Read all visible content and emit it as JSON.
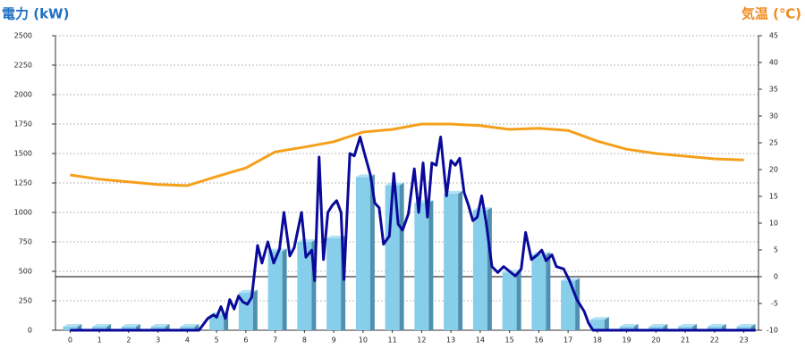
{
  "chart_data": {
    "type": "bar",
    "y_label": "電力 (kW)",
    "y2_label": "気温 (℃)",
    "categories": [
      "0",
      "1",
      "2",
      "3",
      "4",
      "5",
      "6",
      "7",
      "8",
      "9",
      "10",
      "11",
      "12",
      "13",
      "14",
      "15",
      "16",
      "17",
      "18",
      "19",
      "20",
      "21",
      "22",
      "23"
    ],
    "ylim": [
      0,
      2500
    ],
    "yticks": [
      0,
      250,
      500,
      750,
      1000,
      1250,
      1500,
      1750,
      2000,
      2250,
      2500
    ],
    "y2lim": [
      -10,
      45
    ],
    "y2ticks": [
      -10,
      -5,
      0,
      5,
      10,
      15,
      20,
      25,
      30,
      35,
      40,
      45
    ],
    "grid": true,
    "series": [
      {
        "type": "bar",
        "color": "#87ceeb",
        "values": [
          0,
          0,
          0,
          0,
          0,
          100,
          290,
          640,
          720,
          750,
          1270,
          1200,
          1050,
          1130,
          990,
          460,
          610,
          390,
          60,
          0,
          0,
          0,
          0,
          0
        ]
      },
      {
        "type": "line",
        "color": "#f5a01a",
        "axis": "y2",
        "values": [
          19,
          18.2,
          17.7,
          17.2,
          17,
          18.7,
          20.3,
          23.3,
          24.2,
          25.2,
          27,
          27.5,
          28.5,
          28.5,
          28.2,
          27.5,
          27.7,
          27.3,
          25.3,
          23.8,
          23,
          22.5,
          22,
          21.8
        ]
      },
      {
        "type": "line",
        "color": "#0a0a9a",
        "x": [
          0,
          4.4,
          4.7,
          4.9,
          5.0,
          5.15,
          5.3,
          5.45,
          5.6,
          5.75,
          5.9,
          6.05,
          6.2,
          6.4,
          6.55,
          6.75,
          6.95,
          7.15,
          7.3,
          7.5,
          7.65,
          7.9,
          8.05,
          8.25,
          8.35,
          8.5,
          8.65,
          8.8,
          8.95,
          9.1,
          9.25,
          9.35,
          9.55,
          9.7,
          9.9,
          10.05,
          10.25,
          10.4,
          10.55,
          10.7,
          10.9,
          11.05,
          11.2,
          11.35,
          11.55,
          11.75,
          11.9,
          12.05,
          12.2,
          12.35,
          12.5,
          12.65,
          12.85,
          13.0,
          13.15,
          13.3,
          13.45,
          13.6,
          13.75,
          13.9,
          14.05,
          14.2,
          14.4,
          14.6,
          14.8,
          15.0,
          15.2,
          15.4,
          15.55,
          15.75,
          15.95,
          16.1,
          16.25,
          16.45,
          16.6,
          16.85,
          17.05,
          17.3,
          17.55,
          17.7,
          17.85,
          23.4
        ],
        "values": [
          0,
          0,
          100,
          130,
          110,
          200,
          100,
          260,
          180,
          290,
          240,
          220,
          280,
          720,
          570,
          750,
          570,
          690,
          1000,
          630,
          700,
          1000,
          620,
          680,
          420,
          1470,
          600,
          1000,
          1060,
          1100,
          1000,
          430,
          1500,
          1480,
          1640,
          1500,
          1320,
          1080,
          1040,
          730,
          800,
          1330,
          900,
          850,
          990,
          1370,
          1000,
          1420,
          960,
          1420,
          1400,
          1640,
          1140,
          1440,
          1400,
          1460,
          1170,
          1060,
          930,
          960,
          1140,
          920,
          540,
          490,
          540,
          500,
          460,
          520,
          830,
          600,
          640,
          680,
          590,
          640,
          540,
          520,
          420,
          260,
          160,
          60,
          0,
          0
        ]
      }
    ]
  }
}
